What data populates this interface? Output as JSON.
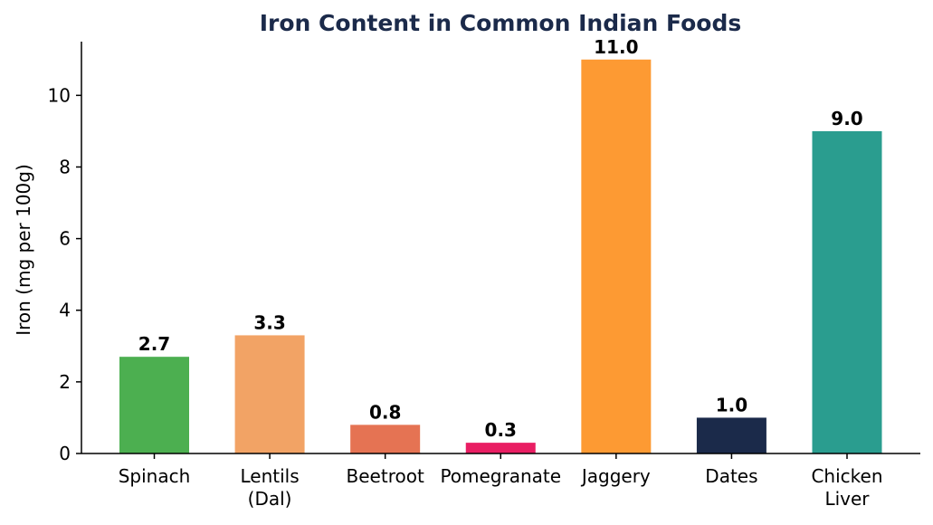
{
  "chart_data": {
    "type": "bar",
    "title": "Iron Content in Common Indian Foods",
    "xlabel": "",
    "ylabel": "Iron (mg per 100g)",
    "ylim": [
      0,
      11.5
    ],
    "yticks": [
      0,
      2,
      4,
      6,
      8,
      10
    ],
    "categories": [
      "Spinach",
      "Lentils\n(Dal)",
      "Beetroot",
      "Pomegranate",
      "Jaggery",
      "Dates",
      "Chicken\nLiver"
    ],
    "values": [
      2.7,
      3.3,
      0.8,
      0.3,
      11.0,
      1.0,
      9.0
    ],
    "data_labels": [
      "2.7",
      "3.3",
      "0.8",
      "0.3",
      "11.0",
      "1.0",
      "9.0"
    ],
    "colors": [
      "#4caf50",
      "#f2a365",
      "#e57353",
      "#e91e63",
      "#fd9a33",
      "#1b2a4a",
      "#2a9d8f"
    ],
    "grid": false,
    "legend": "none"
  }
}
